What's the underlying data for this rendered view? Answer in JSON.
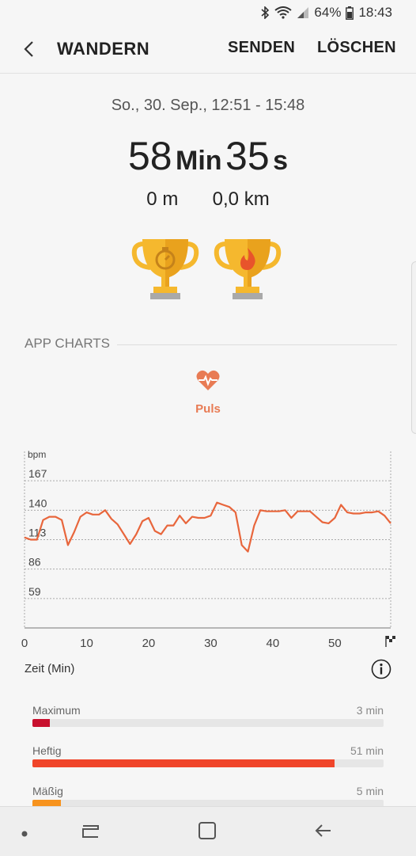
{
  "status_bar": {
    "battery": "64%",
    "time": "18:43"
  },
  "app_bar": {
    "title": "WANDERN",
    "send_label": "SENDEN",
    "delete_label": "LÖSCHEN"
  },
  "workout": {
    "date_range": "So., 30. Sep., 12:51 - 15:48",
    "duration_minutes": "58",
    "duration_min_unit": "Min",
    "duration_seconds": "35",
    "duration_sec_unit": "s",
    "elevation": "0 m",
    "distance": "0,0 km",
    "trophies": [
      "stopwatch-trophy-icon",
      "flame-trophy-icon"
    ]
  },
  "section": {
    "title": "APP CHARTS"
  },
  "metric": {
    "label": "Puls",
    "icon": "heart-rate-icon"
  },
  "chart_data": {
    "type": "line",
    "ylabel": "bpm",
    "xlabel": "Zeit (Min)",
    "y_ticks": [
      "167",
      "140",
      "113",
      "86",
      "59"
    ],
    "x_ticks": [
      "0",
      "10",
      "20",
      "30",
      "40",
      "50"
    ],
    "ylim": [
      32,
      194
    ],
    "xlim": [
      0,
      59
    ],
    "line_color": "#e8663c",
    "x": [
      0,
      1,
      2,
      3,
      4,
      5,
      6,
      7,
      8,
      9,
      10,
      11,
      12,
      13,
      14,
      15,
      16,
      17,
      18,
      19,
      20,
      21,
      22,
      23,
      24,
      25,
      26,
      27,
      28,
      29,
      30,
      31,
      32,
      33,
      34,
      35,
      36,
      37,
      38,
      39,
      40,
      41,
      42,
      43,
      44,
      45,
      46,
      47,
      48,
      49,
      50,
      51,
      52,
      53,
      54,
      55,
      56,
      57,
      58,
      59
    ],
    "y": [
      115,
      113,
      113,
      131,
      134,
      134,
      131,
      108,
      120,
      134,
      138,
      136,
      136,
      140,
      132,
      127,
      118,
      109,
      118,
      130,
      133,
      121,
      118,
      126,
      126,
      135,
      128,
      134,
      133,
      133,
      135,
      147,
      145,
      143,
      138,
      108,
      102,
      126,
      140,
      139,
      139,
      139,
      140,
      133,
      139,
      139,
      139,
      134,
      129,
      128,
      133,
      145,
      138,
      137,
      137,
      138,
      138,
      139,
      135,
      128
    ]
  },
  "zones": [
    {
      "name": "Maximum",
      "value": "3 min",
      "fraction": 0.05,
      "color": "#c8102e"
    },
    {
      "name": "Heftig",
      "value": "51 min",
      "fraction": 0.86,
      "color": "#f0452a"
    },
    {
      "name": "Mäßig",
      "value": "5 min",
      "fraction": 0.08,
      "color": "#f7931e"
    }
  ]
}
